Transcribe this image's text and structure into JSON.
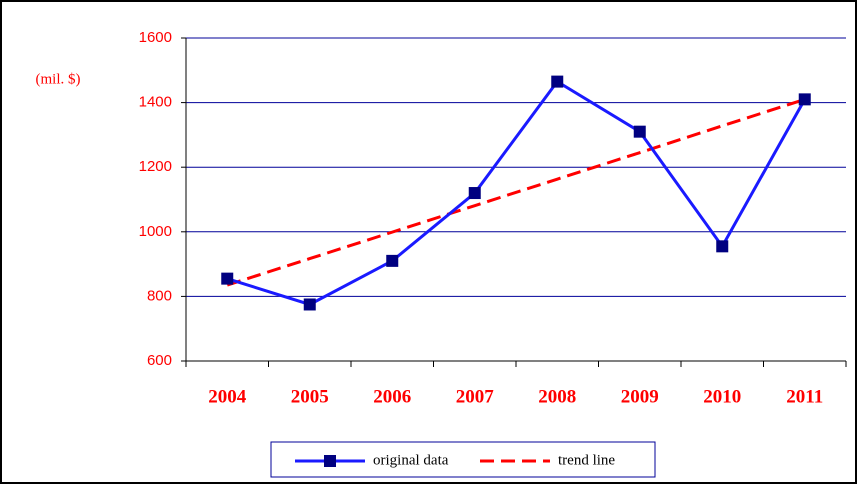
{
  "chart_data": {
    "type": "line",
    "y_label": "(mil. $)",
    "categories": [
      "2004",
      "2005",
      "2006",
      "2007",
      "2008",
      "2009",
      "2010",
      "2011"
    ],
    "series": [
      {
        "name": "original data",
        "color": "#1a1aff",
        "marker_color": "#000080",
        "marker": "square",
        "dashed": false,
        "values": [
          855,
          775,
          910,
          1120,
          1465,
          1310,
          955,
          1410
        ]
      },
      {
        "name": "trend line",
        "color": "#ff0000",
        "marker": "none",
        "dashed": true,
        "values": [
          835,
          917,
          999,
          1081,
          1163,
          1245,
          1328,
          1410
        ]
      }
    ],
    "ylim": [
      600,
      1600
    ],
    "yticks": [
      600,
      800,
      1000,
      1200,
      1400,
      1600
    ],
    "grid": true,
    "grid_color": "#000099",
    "label_color": "#ff0000",
    "legend": "bottom"
  }
}
